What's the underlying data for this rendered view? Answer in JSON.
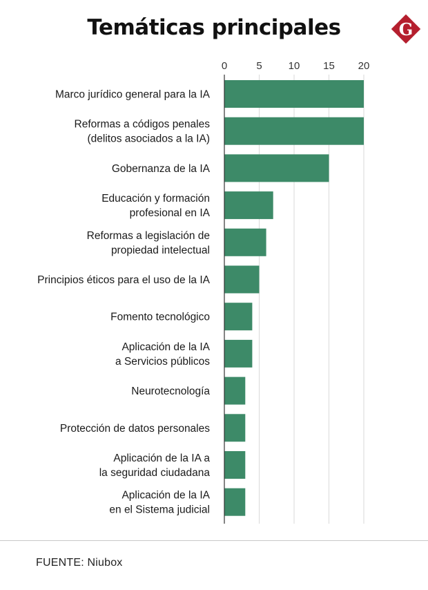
{
  "header": {
    "title": "Temáticas principales",
    "logo_letter": "G"
  },
  "colors": {
    "bar": "#3d8a68",
    "logo": "#b51f2e",
    "grid": "#d9d9d9",
    "axis": "#333333"
  },
  "chart_data": {
    "type": "bar",
    "orientation": "horizontal",
    "title": "Temáticas principales",
    "xlabel": "",
    "ylabel": "",
    "xlim": [
      0,
      20
    ],
    "x_ticks": [
      0,
      5,
      10,
      15,
      20
    ],
    "grid": true,
    "categories": [
      [
        "Marco jurídico  general para la IA"
      ],
      [
        "Reformas a códigos  penales",
        "(delitos asociados a la IA)"
      ],
      [
        "Gobernanza de la IA"
      ],
      [
        "Educación y formación",
        "profesional en IA"
      ],
      [
        "Reformas a legislación de",
        "propiedad intelectual"
      ],
      [
        "Principios éticos para el uso de la IA"
      ],
      [
        "Fomento tecnológico"
      ],
      [
        "Aplicación de la IA",
        "a Servicios públicos"
      ],
      [
        "Neurotecnología"
      ],
      [
        "Protección de datos personales"
      ],
      [
        "Aplicación de la IA a",
        "la seguridad ciudadana"
      ],
      [
        "Aplicación de la IA",
        "en el Sistema judicial"
      ]
    ],
    "values": [
      20,
      20,
      15,
      7,
      6,
      5,
      4,
      4,
      3,
      3,
      3,
      3
    ]
  },
  "footer": {
    "source": "FUENTE: Niubox"
  }
}
